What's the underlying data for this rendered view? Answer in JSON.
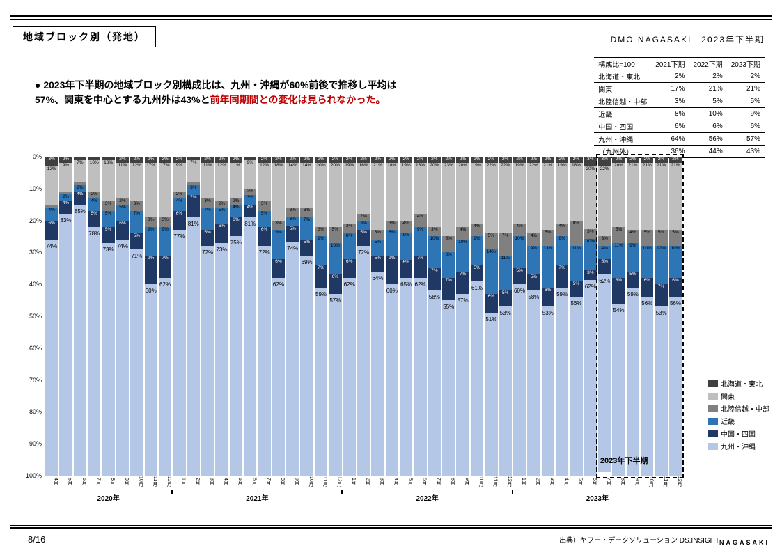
{
  "header": {
    "title": "地域ブロック別（発地）",
    "org": "DMO NAGASAKI",
    "period": "2023年下半期"
  },
  "bullet": {
    "prefix": "● ",
    "text_black": "2023年下半期の地域ブロック別構成比は、九州・沖縄が60%前後で推移し平均は57%、関東を中心とする九州外は43%と",
    "text_red": "前年同期間との変化は見られなかった。"
  },
  "table": {
    "header_label": "構成比=100",
    "cols": [
      "2021下期",
      "2022下期",
      "2023下期"
    ],
    "rows": [
      {
        "label": "北海道・東北",
        "vals": [
          "2%",
          "2%",
          "2%"
        ]
      },
      {
        "label": "関東",
        "vals": [
          "17%",
          "21%",
          "21%"
        ]
      },
      {
        "label": "北陸信越・中部",
        "vals": [
          "3%",
          "5%",
          "5%"
        ]
      },
      {
        "label": "近畿",
        "vals": [
          "8%",
          "10%",
          "9%"
        ]
      },
      {
        "label": "中国・四国",
        "vals": [
          "6%",
          "6%",
          "6%"
        ]
      },
      {
        "label": "九州・沖縄",
        "vals": [
          "64%",
          "56%",
          "57%"
        ]
      },
      {
        "label": "（九州外）",
        "vals": [
          "36%",
          "44%",
          "43%"
        ]
      }
    ]
  },
  "chart": {
    "type": "stacked-bar-100",
    "y_ticks": [
      0,
      10,
      20,
      30,
      40,
      50,
      60,
      70,
      80,
      90,
      100
    ],
    "colors": {
      "hokkaido": "#404040",
      "kanto": "#bfbfbf",
      "hokuriku": "#808080",
      "kinki": "#2e75b6",
      "chugoku": "#1f3864",
      "kyushu": "#b4c7e7"
    },
    "series_order": [
      "hokkaido",
      "kanto",
      "hokuriku",
      "kinki",
      "chugoku",
      "kyushu"
    ],
    "series_labels": {
      "hokkaido": "北海道・東北",
      "kanto": "関東",
      "hokuriku": "北陸信越・中部",
      "kinki": "近畿",
      "chugoku": "中国・四国",
      "kyushu": "九州・沖縄"
    },
    "year_groups": [
      {
        "label": "2020年",
        "count": 9
      },
      {
        "label": "2021年",
        "count": 12
      },
      {
        "label": "2022年",
        "count": 12
      },
      {
        "label": "2023年",
        "count": 12
      }
    ],
    "months": [
      "4月",
      "5月",
      "6月",
      "7月",
      "8月",
      "9月",
      "10月",
      "11月",
      "12月",
      "1月",
      "2月",
      "3月",
      "4月",
      "5月",
      "6月",
      "7月",
      "8月",
      "9月",
      "10月",
      "11月",
      "12月",
      "1月",
      "2月",
      "3月",
      "4月",
      "5月",
      "6月",
      "7月",
      "8月",
      "9月",
      "10月",
      "11月",
      "12月",
      "1月",
      "2月",
      "3月",
      "4月",
      "5月",
      "6月",
      "7月",
      "8月",
      "9月",
      "10月",
      "11月",
      "12月"
    ],
    "highlight": {
      "start_index": 39,
      "end_index": 45,
      "label": "2023年下半期"
    },
    "data": [
      {
        "hokkaido": 3,
        "kanto": 12,
        "hokuriku": 1,
        "kinki": 4,
        "chugoku": 6,
        "kyushu": 74
      },
      {
        "hokkaido": 2,
        "kanto": 9,
        "hokuriku": 1,
        "kinki": 2,
        "chugoku": 4,
        "kyushu": 83
      },
      {
        "hokkaido": 1,
        "kanto": 7,
        "hokuriku": 1,
        "kinki": 2,
        "chugoku": 4,
        "kyushu": 85
      },
      {
        "hokkaido": 1,
        "kanto": 10,
        "hokuriku": 2,
        "kinki": 4,
        "chugoku": 5,
        "kyushu": 78
      },
      {
        "hokkaido": 1,
        "kanto": 13,
        "hokuriku": 3,
        "kinki": 5,
        "chugoku": 5,
        "kyushu": 73
      },
      {
        "hokkaido": 2,
        "kanto": 11,
        "hokuriku": 2,
        "kinki": 5,
        "chugoku": 6,
        "kyushu": 74
      },
      {
        "hokkaido": 2,
        "kanto": 12,
        "hokuriku": 3,
        "kinki": 7,
        "chugoku": 5,
        "kyushu": 71
      },
      {
        "hokkaido": 2,
        "kanto": 17,
        "hokuriku": 3,
        "kinki": 9,
        "chugoku": 9,
        "kyushu": 60
      },
      {
        "hokkaido": 2,
        "kanto": 17,
        "hokuriku": 3,
        "kinki": 9,
        "chugoku": 7,
        "kyushu": 62
      },
      {
        "hokkaido": 2,
        "kanto": 9,
        "hokuriku": 2,
        "kinki": 4,
        "chugoku": 6,
        "kyushu": 77
      },
      {
        "hokkaido": 1,
        "kanto": 7,
        "hokuriku": 1,
        "kinki": 3,
        "chugoku": 7,
        "kyushu": 81
      },
      {
        "hokkaido": 2,
        "kanto": 11,
        "hokuriku": 3,
        "kinki": 7,
        "chugoku": 5,
        "kyushu": 72
      },
      {
        "hokkaido": 2,
        "kanto": 12,
        "hokuriku": 2,
        "kinki": 5,
        "chugoku": 6,
        "kyushu": 73
      },
      {
        "hokkaido": 2,
        "kanto": 11,
        "hokuriku": 2,
        "kinki": 4,
        "chugoku": 6,
        "kyushu": 75
      },
      {
        "hokkaido": 1,
        "kanto": 9,
        "hokuriku": 2,
        "kinki": 3,
        "chugoku": 4,
        "kyushu": 81
      },
      {
        "hokkaido": 2,
        "kanto": 12,
        "hokuriku": 3,
        "kinki": 5,
        "chugoku": 6,
        "kyushu": 72
      },
      {
        "hokkaido": 2,
        "kanto": 18,
        "hokuriku": 3,
        "kinki": 9,
        "chugoku": 6,
        "kyushu": 62
      },
      {
        "hokkaido": 2,
        "kanto": 14,
        "hokuriku": 3,
        "kinki": 3,
        "chugoku": 5,
        "kyushu": 74
      },
      {
        "hokkaido": 2,
        "kanto": 14,
        "hokuriku": 3,
        "kinki": 7,
        "chugoku": 5,
        "kyushu": 69
      },
      {
        "hokkaido": 2,
        "kanto": 20,
        "hokuriku": 3,
        "kinki": 9,
        "chugoku": 7,
        "kyushu": 59
      },
      {
        "hokkaido": 2,
        "kanto": 20,
        "hokuriku": 5,
        "kinki": 10,
        "chugoku": 6,
        "kyushu": 57
      },
      {
        "hokkaido": 2,
        "kanto": 19,
        "hokuriku": 3,
        "kinki": 8,
        "chugoku": 6,
        "kyushu": 62
      },
      {
        "hokkaido": 2,
        "kanto": 16,
        "hokuriku": 2,
        "kinki": 3,
        "chugoku": 5,
        "kyushu": 72
      },
      {
        "hokkaido": 2,
        "kanto": 21,
        "hokuriku": 3,
        "kinki": 5,
        "chugoku": 5,
        "kyushu": 64
      },
      {
        "hokkaido": 2,
        "kanto": 18,
        "hokuriku": 3,
        "kinki": 8,
        "chugoku": 9,
        "kyushu": 60
      },
      {
        "hokkaido": 2,
        "kanto": 19,
        "hokuriku": 4,
        "kinki": 9,
        "chugoku": 6,
        "kyushu": 65
      },
      {
        "hokkaido": 2,
        "kanto": 16,
        "hokuriku": 4,
        "kinki": 9,
        "chugoku": 7,
        "kyushu": 62
      },
      {
        "hokkaido": 2,
        "kanto": 20,
        "hokuriku": 3,
        "kinki": 10,
        "chugoku": 7,
        "kyushu": 58
      },
      {
        "hokkaido": 2,
        "kanto": 23,
        "hokuriku": 5,
        "kinki": 8,
        "chugoku": 7,
        "kyushu": 55
      },
      {
        "hokkaido": 2,
        "kanto": 20,
        "hokuriku": 4,
        "kinki": 10,
        "chugoku": 7,
        "kyushu": 57
      },
      {
        "hokkaido": 2,
        "kanto": 19,
        "hokuriku": 4,
        "kinki": 9,
        "chugoku": 5,
        "kyushu": 61
      },
      {
        "hokkaido": 2,
        "kanto": 22,
        "hokuriku": 5,
        "kinki": 14,
        "chugoku": 6,
        "kyushu": 51
      },
      {
        "hokkaido": 2,
        "kanto": 22,
        "hokuriku": 7,
        "kinki": 11,
        "chugoku": 5,
        "kyushu": 53
      },
      {
        "hokkaido": 2,
        "kanto": 19,
        "hokuriku": 4,
        "kinki": 10,
        "chugoku": 5,
        "kyushu": 60
      },
      {
        "hokkaido": 2,
        "kanto": 22,
        "hokuriku": 4,
        "kinki": 9,
        "chugoku": 5,
        "kyushu": 58
      },
      {
        "hokkaido": 2,
        "kanto": 21,
        "hokuriku": 5,
        "kinki": 13,
        "chugoku": 6,
        "kyushu": 53
      },
      {
        "hokkaido": 2,
        "kanto": 19,
        "hokuriku": 4,
        "kinki": 9,
        "chugoku": 7,
        "kyushu": 59
      },
      {
        "hokkaido": 2,
        "kanto": 18,
        "hokuriku": 8,
        "kinki": 11,
        "chugoku": 5,
        "kyushu": 56
      },
      {
        "hokkaido": 3,
        "kanto": 20,
        "hokuriku": 3,
        "kinki": 10,
        "chugoku": 3,
        "kyushu": 62
      },
      {
        "hokkaido": 3,
        "kanto": 22,
        "hokuriku": 3,
        "kinki": 4,
        "chugoku": 5,
        "kyushu": 62
      },
      {
        "hokkaido": 2,
        "kanto": 20,
        "hokuriku": 5,
        "kinki": 11,
        "chugoku": 8,
        "kyushu": 54
      },
      {
        "hokkaido": 2,
        "kanto": 21,
        "hokuriku": 4,
        "kinki": 9,
        "chugoku": 5,
        "kyushu": 59
      },
      {
        "hokkaido": 2,
        "kanto": 21,
        "hokuriku": 5,
        "kinki": 10,
        "chugoku": 6,
        "kyushu": 56
      },
      {
        "hokkaido": 2,
        "kanto": 21,
        "hokuriku": 5,
        "kinki": 12,
        "chugoku": 7,
        "kyushu": 53
      },
      {
        "hokkaido": 2,
        "kanto": 21,
        "hokuriku": 5,
        "kinki": 10,
        "chugoku": 6,
        "kyushu": 56
      }
    ]
  },
  "footer": {
    "page": "8/16",
    "source": "出典）ヤフー・データソリューション DS.INSIGHT",
    "logo": "NAGASAKI"
  }
}
